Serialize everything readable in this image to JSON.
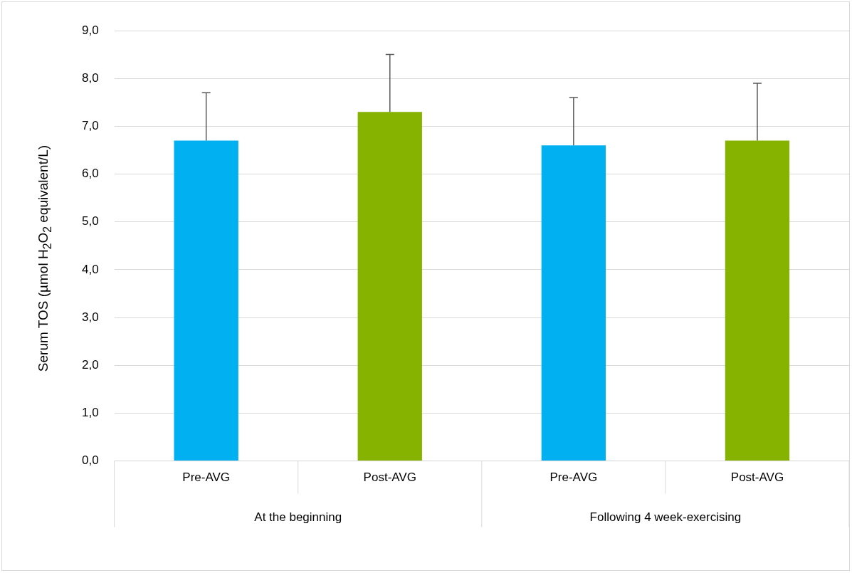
{
  "chart_data": {
    "type": "bar",
    "ylabel": "Serum TOS (µmol H$_{2}$O$_{2}$ equivalent/L)",
    "categories": [
      "Pre-AVG",
      "Post-AVG",
      "Pre-AVG",
      "Post-AVG"
    ],
    "values": [
      6.7,
      7.3,
      6.6,
      6.7
    ],
    "colors": [
      "#00b0f0",
      "#86b300",
      "#00b0f0",
      "#86b300"
    ],
    "errors": [
      [
        6.7,
        7.7
      ],
      [
        7.3,
        8.5
      ],
      [
        6.6,
        7.6
      ],
      [
        6.7,
        7.9
      ]
    ],
    "ylim": [
      0,
      9
    ],
    "yticks": [
      {
        "value": 0,
        "label": "0,0"
      },
      {
        "value": 1,
        "label": "1,0"
      },
      {
        "value": 2,
        "label": "2,0"
      },
      {
        "value": 3,
        "label": "3,0"
      },
      {
        "value": 4,
        "label": "4,0"
      },
      {
        "value": 5,
        "label": "5,0"
      },
      {
        "value": 6,
        "label": "6,0"
      },
      {
        "value": 7,
        "label": "7,0"
      },
      {
        "value": 8,
        "label": "8,0"
      },
      {
        "value": 9,
        "label": "9,0"
      }
    ],
    "grid": "y",
    "legend": false,
    "annotations": [
      "At the beginning",
      "Following 4 week-exercising"
    ]
  }
}
